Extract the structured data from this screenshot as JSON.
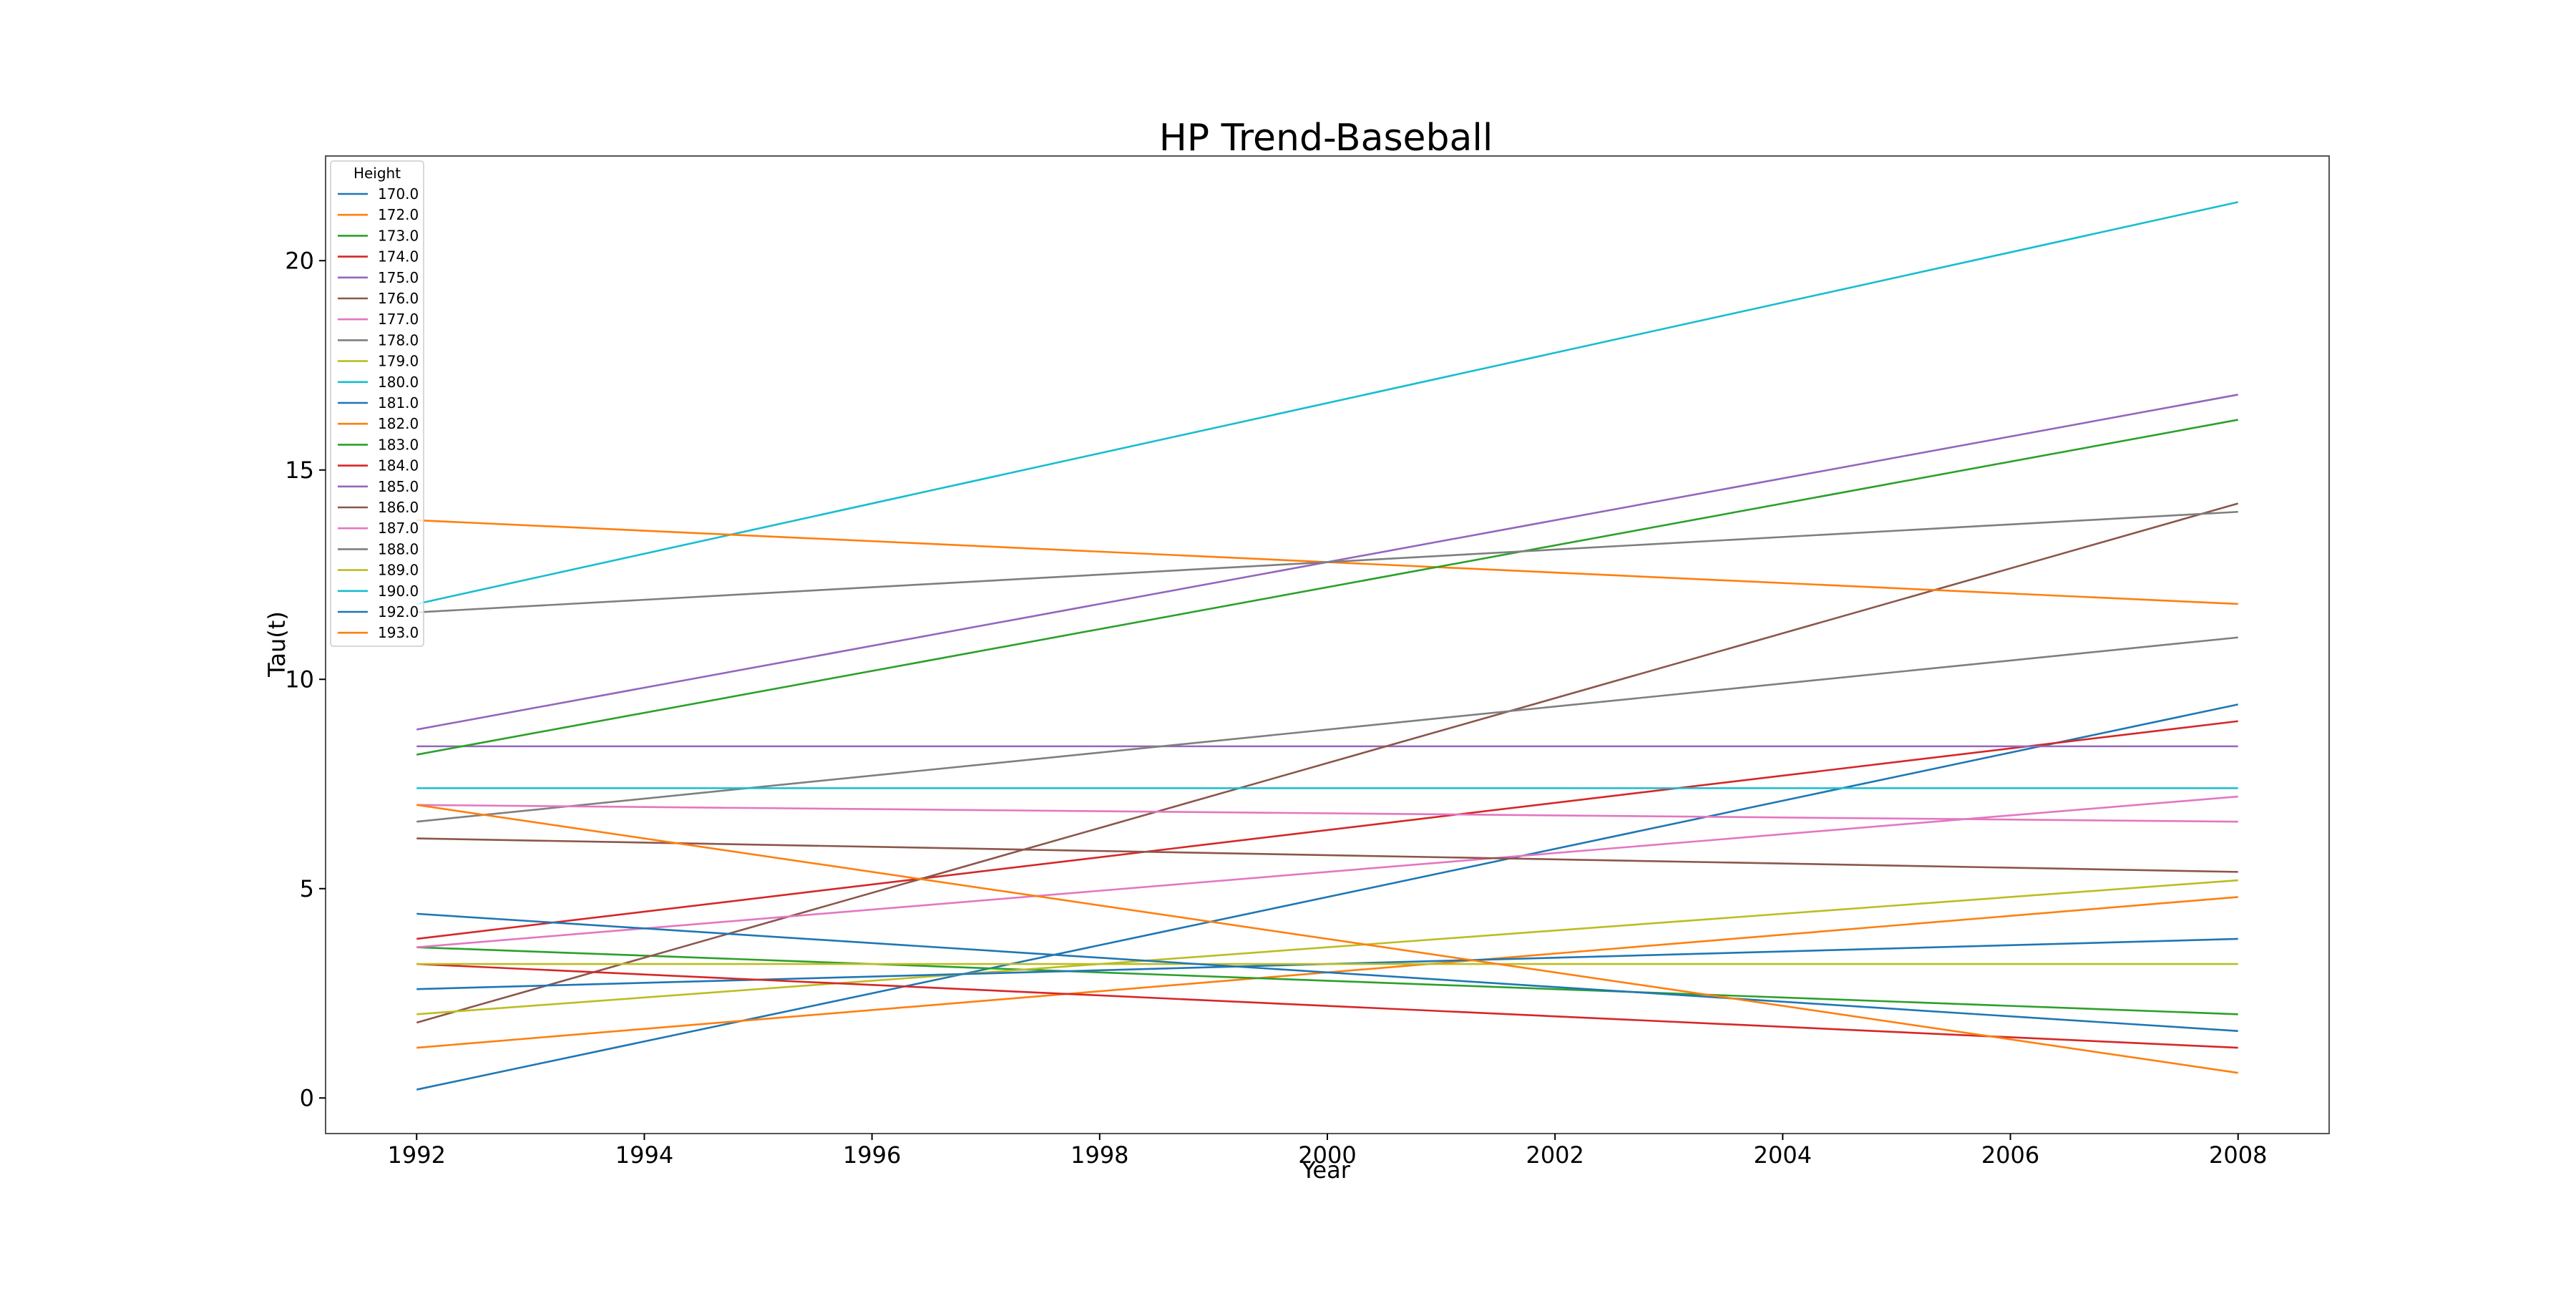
{
  "chart_data": {
    "type": "line",
    "title": "HP Trend-Baseball",
    "xlabel": "Year",
    "ylabel": "Tau(t)",
    "xlim": [
      1991.2,
      2008.8
    ],
    "ylim": [
      -0.85,
      22.5
    ],
    "xticks": [
      "1992",
      "1994",
      "1996",
      "1998",
      "2000",
      "2002",
      "2004",
      "2006",
      "2008"
    ],
    "yticks": [
      "0",
      "5",
      "10",
      "15",
      "20"
    ],
    "grid": false,
    "legend": {
      "title": "Height",
      "placement": "top-left"
    },
    "x": [
      1992,
      2008
    ],
    "series": [
      {
        "name": "170.0",
        "color": "#1f77b4",
        "values": [
          0.2,
          9.4
        ]
      },
      {
        "name": "172.0",
        "color": "#ff7f0e",
        "values": [
          1.2,
          4.8
        ]
      },
      {
        "name": "173.0",
        "color": "#2ca02c",
        "values": [
          3.6,
          2.0
        ]
      },
      {
        "name": "174.0",
        "color": "#d62728",
        "values": [
          3.8,
          9.0
        ]
      },
      {
        "name": "175.0",
        "color": "#9467bd",
        "values": [
          8.4,
          8.4
        ]
      },
      {
        "name": "176.0",
        "color": "#8c564b",
        "values": [
          1.8,
          14.2
        ]
      },
      {
        "name": "177.0",
        "color": "#e377c2",
        "values": [
          3.6,
          7.2
        ]
      },
      {
        "name": "178.0",
        "color": "#7f7f7f",
        "values": [
          6.6,
          11.0
        ]
      },
      {
        "name": "179.0",
        "color": "#bcbd22",
        "values": [
          2.0,
          5.2
        ]
      },
      {
        "name": "180.0",
        "color": "#17becf",
        "values": [
          11.8,
          21.4
        ]
      },
      {
        "name": "181.0",
        "color": "#1f77b4",
        "values": [
          2.6,
          3.8
        ]
      },
      {
        "name": "182.0",
        "color": "#ff7f0e",
        "values": [
          13.8,
          11.8
        ]
      },
      {
        "name": "183.0",
        "color": "#2ca02c",
        "values": [
          8.2,
          16.2
        ]
      },
      {
        "name": "184.0",
        "color": "#d62728",
        "values": [
          3.2,
          1.2
        ]
      },
      {
        "name": "185.0",
        "color": "#9467bd",
        "values": [
          8.8,
          16.8
        ]
      },
      {
        "name": "186.0",
        "color": "#8c564b",
        "values": [
          6.2,
          5.4
        ]
      },
      {
        "name": "187.0",
        "color": "#e377c2",
        "values": [
          7.0,
          6.6
        ]
      },
      {
        "name": "188.0",
        "color": "#7f7f7f",
        "values": [
          11.6,
          14.0
        ]
      },
      {
        "name": "189.0",
        "color": "#bcbd22",
        "values": [
          3.2,
          3.2
        ]
      },
      {
        "name": "190.0",
        "color": "#17becf",
        "values": [
          7.4,
          7.4
        ]
      },
      {
        "name": "192.0",
        "color": "#1f77b4",
        "values": [
          4.4,
          1.6
        ]
      },
      {
        "name": "193.0",
        "color": "#ff7f0e",
        "values": [
          7.0,
          0.6
        ]
      }
    ]
  }
}
